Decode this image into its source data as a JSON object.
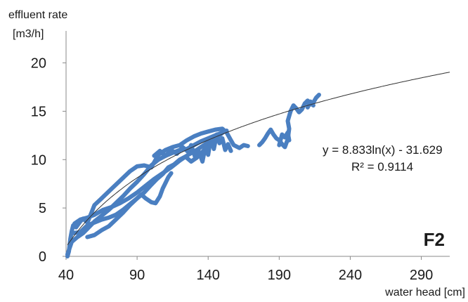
{
  "chart_data": {
    "type": "line",
    "ylabel_line1": "effluent rate",
    "ylabel_line2": "[m3/h]",
    "xlabel": "water head [cm]",
    "xlim": [
      40,
      310
    ],
    "ylim": [
      0,
      22
    ],
    "x_ticks": [
      40,
      90,
      140,
      190,
      240,
      290
    ],
    "y_ticks": [
      0,
      5,
      10,
      15,
      20
    ],
    "x_tick_labels": [
      "40",
      "90",
      "140",
      "190",
      "240",
      "290"
    ],
    "y_tick_labels": [
      "0",
      "5",
      "10",
      "15",
      "20"
    ],
    "grid": false,
    "legend": "none",
    "panel_label": "F2",
    "trendline": {
      "type": "logarithmic",
      "equation": "y = 8.833ln(x) - 31.629",
      "r_squared": "R² = 0.9114",
      "a": 8.833,
      "b": -31.629,
      "x_range": [
        41,
        310
      ],
      "color": "#333333"
    },
    "series": [
      {
        "color": "#4a7fc1",
        "segments": [
          [
            [
              41,
              0
            ],
            [
              42,
              0.5
            ],
            [
              43,
              1.8
            ],
            [
              44,
              2.6
            ],
            [
              45,
              3.2
            ],
            [
              47,
              3.0
            ],
            [
              50,
              3.6
            ],
            [
              52,
              3.9
            ],
            [
              55,
              3.5
            ],
            [
              57,
              4.2
            ],
            [
              60,
              5.3
            ],
            [
              65,
              6.0
            ],
            [
              70,
              6.7
            ],
            [
              75,
              7.4
            ],
            [
              80,
              8.1
            ],
            [
              85,
              8.8
            ],
            [
              90,
              9.3
            ],
            [
              95,
              9.4
            ],
            [
              100,
              9.2
            ],
            [
              105,
              10.5
            ],
            [
              110,
              11.0
            ],
            [
              115,
              11.3
            ],
            [
              120,
              11.5
            ],
            [
              125,
              12.0
            ],
            [
              130,
              12.4
            ],
            [
              135,
              12.7
            ],
            [
              140,
              12.9
            ],
            [
              145,
              13.1
            ],
            [
              150,
              13.2
            ],
            [
              153,
              12.8
            ],
            [
              156,
              12.0
            ],
            [
              158,
              11.5
            ],
            [
              162,
              11.2
            ],
            [
              165,
              11.5
            ],
            [
              168,
              11.4
            ]
          ],
          [
            [
              41,
              0.2
            ],
            [
              44,
              1.5
            ],
            [
              48,
              2.0
            ],
            [
              52,
              2.4
            ],
            [
              56,
              3.0
            ],
            [
              60,
              3.6
            ],
            [
              65,
              4.2
            ],
            [
              70,
              4.8
            ],
            [
              75,
              5.5
            ],
            [
              80,
              6.2
            ],
            [
              85,
              7.0
            ],
            [
              90,
              7.7
            ],
            [
              95,
              8.5
            ],
            [
              100,
              9.4
            ],
            [
              105,
              10.0
            ],
            [
              110,
              10.4
            ],
            [
              115,
              10.7
            ],
            [
              120,
              11.0
            ],
            [
              125,
              11.1
            ],
            [
              130,
              11.5
            ],
            [
              135,
              11.9
            ],
            [
              140,
              12.2
            ],
            [
              145,
              12.5
            ],
            [
              150,
              12.8
            ],
            [
              153,
              13.0
            ]
          ],
          [
            [
              45,
              2.4
            ],
            [
              50,
              2.5
            ],
            [
              55,
              3.2
            ],
            [
              60,
              3.5
            ],
            [
              65,
              3.8
            ],
            [
              70,
              4.0
            ],
            [
              75,
              4.3
            ],
            [
              80,
              4.8
            ],
            [
              85,
              5.4
            ],
            [
              90,
              6.0
            ],
            [
              95,
              6.6
            ],
            [
              100,
              7.4
            ],
            [
              104,
              8.0
            ],
            [
              108,
              8.5
            ],
            [
              112,
              9.2
            ],
            [
              116,
              9.5
            ],
            [
              120,
              10.0
            ],
            [
              124,
              10.3
            ],
            [
              128,
              9.8
            ],
            [
              132,
              10.2
            ],
            [
              136,
              10.8
            ],
            [
              140,
              11.5
            ],
            [
              144,
              12.0
            ],
            [
              148,
              12.5
            ],
            [
              151,
              12.9
            ]
          ],
          [
            [
              55,
              2.0
            ],
            [
              60,
              2.2
            ],
            [
              65,
              2.7
            ],
            [
              70,
              3.1
            ],
            [
              75,
              3.8
            ],
            [
              80,
              4.5
            ],
            [
              85,
              5.3
            ],
            [
              90,
              6.0
            ],
            [
              93,
              6.4
            ],
            [
              96,
              6.0
            ],
            [
              100,
              5.6
            ],
            [
              103,
              5.5
            ],
            [
              106,
              6.2
            ],
            [
              108,
              7.0
            ],
            [
              110,
              7.6
            ],
            [
              112,
              8.2
            ],
            [
              114,
              8.6
            ]
          ],
          [
            [
              46,
              3.4
            ],
            [
              50,
              3.8
            ],
            [
              55,
              4.0
            ],
            [
              60,
              4.3
            ],
            [
              66,
              4.8
            ],
            [
              72,
              5.1
            ],
            [
              78,
              5.5
            ],
            [
              84,
              6.0
            ],
            [
              90,
              6.6
            ],
            [
              96,
              7.3
            ],
            [
              102,
              8.0
            ],
            [
              108,
              8.6
            ],
            [
              114,
              9.2
            ],
            [
              120,
              9.9
            ],
            [
              126,
              10.5
            ],
            [
              132,
              11.0
            ],
            [
              138,
              11.6
            ],
            [
              144,
              12.2
            ],
            [
              150,
              12.8
            ]
          ],
          [
            [
              102,
              10.4
            ],
            [
              106,
              10.9
            ],
            [
              110,
              10.4
            ],
            [
              114,
              11.0
            ],
            [
              118,
              10.6
            ],
            [
              122,
              11.3
            ],
            [
              126,
              10.8
            ],
            [
              128,
              11.5
            ],
            [
              131,
              10.2
            ],
            [
              133,
              11.0
            ],
            [
              136,
              9.8
            ],
            [
              138,
              11.3
            ],
            [
              140,
              10.5
            ],
            [
              142,
              12.3
            ],
            [
              144,
              11.1
            ],
            [
              146,
              12.6
            ],
            [
              148,
              11.7
            ],
            [
              150,
              12.2
            ],
            [
              152,
              11.0
            ],
            [
              154,
              11.6
            ],
            [
              156,
              10.9
            ]
          ],
          [
            [
              176,
              11.5
            ],
            [
              178,
              11.8
            ],
            [
              180,
              12.2
            ],
            [
              182,
              12.7
            ],
            [
              184,
              13.1
            ],
            [
              186,
              12.6
            ],
            [
              188,
              12.2
            ],
            [
              190,
              12.0
            ],
            [
              192,
              11.6
            ],
            [
              194,
              11.3
            ],
            [
              196,
              12.1
            ],
            [
              197,
              13.2
            ],
            [
              196,
              14.0
            ],
            [
              198,
              15.0
            ],
            [
              200,
              15.6
            ],
            [
              202,
              15.3
            ],
            [
              204,
              14.9
            ],
            [
              206,
              15.2
            ],
            [
              208,
              15.8
            ],
            [
              210,
              16.1
            ],
            [
              212,
              15.7
            ],
            [
              214,
              15.9
            ],
            [
              216,
              16.4
            ],
            [
              218,
              16.7
            ]
          ],
          [
            [
              190,
              11.5
            ],
            [
              192,
              12.6
            ],
            [
              194,
              12.3
            ],
            [
              196,
              12.8
            ],
            [
              197,
              12.0
            ]
          ],
          [
            [
              210,
              15.4
            ],
            [
              212,
              16.0
            ],
            [
              214,
              15.6
            ]
          ]
        ]
      }
    ]
  }
}
